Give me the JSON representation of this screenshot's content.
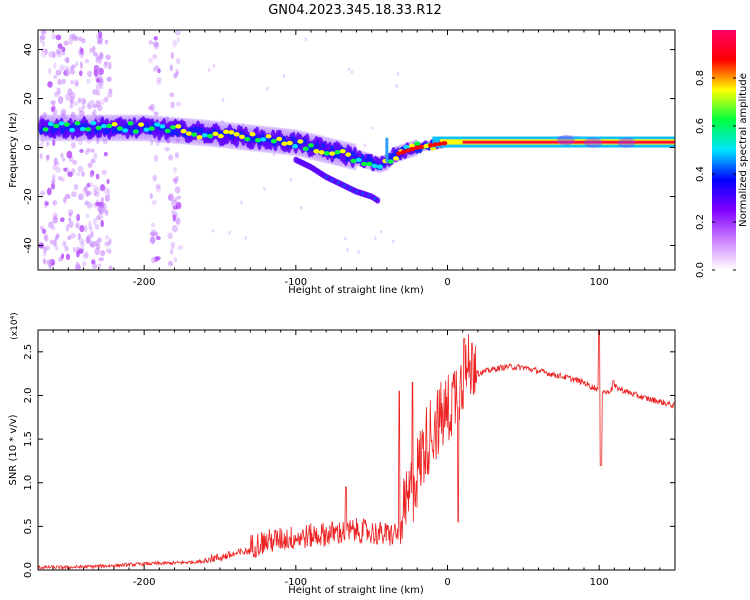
{
  "title": "GN04.2023.345.18.33.R12",
  "chart_data": [
    {
      "type": "heatmap",
      "xlabel": "Height of straight line (km)",
      "ylabel": "Frequency (Hz)",
      "xlim": [
        -270,
        150
      ],
      "ylim": [
        -50,
        48
      ],
      "xticks": [
        -200,
        -100,
        0,
        100
      ],
      "xtick_labels": [
        "-200",
        "-100",
        "0",
        "100"
      ],
      "yticks": [
        -40,
        -20,
        0,
        20,
        40
      ],
      "ytick_labels": [
        "-40",
        "-20",
        "0",
        "20",
        "40"
      ],
      "colorbar": {
        "label": "Normalized spectral amplitude",
        "range": [
          0,
          1
        ],
        "ticks": [
          0.0,
          0.2,
          0.4,
          0.6,
          0.8
        ],
        "tick_labels": [
          "0.0",
          "0.2",
          "0.4",
          "0.6",
          "0.8"
        ],
        "colors": [
          "#ffffff",
          "#cc80ff",
          "#8000ff",
          "#0000ff",
          "#00e5ff",
          "#00ff40",
          "#ffff00",
          "#ff0000",
          "#ff0066"
        ]
      },
      "ridge": {
        "x": [
          -270,
          -240,
          -200,
          -160,
          -130,
          -100,
          -80,
          -60,
          -45,
          -40,
          -35,
          -30,
          -20,
          -10,
          0,
          20,
          60,
          80,
          100,
          150
        ],
        "y": [
          8,
          8,
          8,
          6,
          4,
          2,
          -1,
          -4,
          -7,
          -6,
          -3,
          -2,
          0,
          1,
          2,
          2,
          2,
          3,
          2,
          2
        ]
      },
      "branch": {
        "x": [
          -100,
          -90,
          -80,
          -70,
          -60,
          -50,
          -45
        ],
        "y": [
          -5,
          -8,
          -12,
          -15,
          -18,
          -20,
          -22
        ]
      }
    },
    {
      "type": "line",
      "xlabel": "Height of straight line (km)",
      "ylabel": "SNR (10 * v/v)",
      "scale_label": "(x10⁴)",
      "xlim": [
        -270,
        150
      ],
      "ylim": [
        0,
        2.75
      ],
      "xticks": [
        -200,
        -100,
        0,
        100
      ],
      "xtick_labels": [
        "-200",
        "-100",
        "0",
        "100"
      ],
      "yticks": [
        0,
        0.5,
        1.0,
        1.5,
        2.0,
        2.5
      ],
      "ytick_labels": [
        "0.0",
        "0.5",
        "1.0",
        "1.5",
        "2.0",
        "2.5"
      ],
      "series": [
        {
          "color": "#ee2222",
          "x": [
            -270,
            -250,
            -220,
            -200,
            -180,
            -160,
            -150,
            -140,
            -130,
            -120,
            -110,
            -100,
            -90,
            -80,
            -70,
            -60,
            -50,
            -40,
            -30,
            -25,
            -20,
            -15,
            -10,
            -5,
            0,
            5,
            10,
            15,
            20,
            30,
            40,
            50,
            60,
            70,
            80,
            90,
            95,
            100,
            105,
            110,
            120,
            130,
            140,
            150
          ],
          "y": [
            0.03,
            0.03,
            0.05,
            0.07,
            0.08,
            0.1,
            0.12,
            0.16,
            0.2,
            0.25,
            0.28,
            0.3,
            0.32,
            0.34,
            0.36,
            0.38,
            0.36,
            0.33,
            0.35,
            0.6,
            0.9,
            1.2,
            1.4,
            1.5,
            1.6,
            1.8,
            1.95,
            2.1,
            2.25,
            2.3,
            2.33,
            2.32,
            2.28,
            2.24,
            2.2,
            2.15,
            2.1,
            2.07,
            2.03,
            2.1,
            2.03,
            1.97,
            1.93,
            1.88
          ]
        }
      ]
    }
  ]
}
